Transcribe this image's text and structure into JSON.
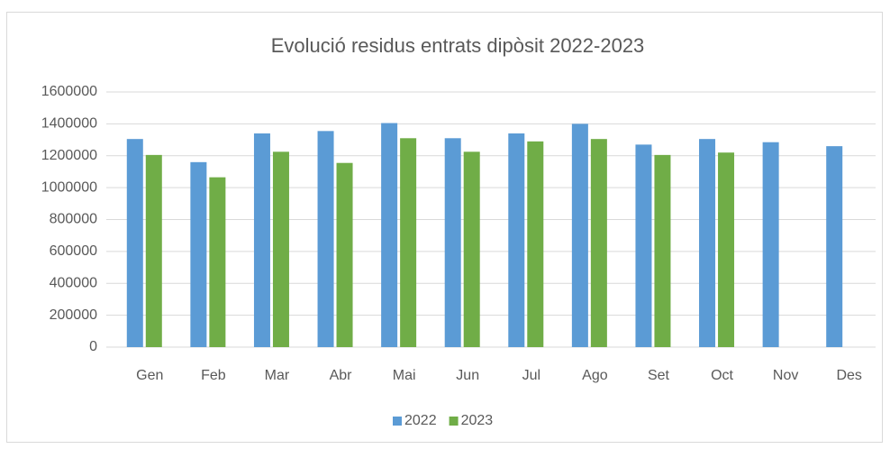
{
  "chart_data": {
    "type": "bar",
    "title": "Evolució residus entrats dipòsit 2022-2023",
    "categories": [
      "Gen",
      "Feb",
      "Mar",
      "Abr",
      "Mai",
      "Jun",
      "Jul",
      "Ago",
      "Set",
      "Oct",
      "Nov",
      "Des"
    ],
    "series": [
      {
        "name": "2022",
        "color": "#5b9bd5",
        "values": [
          1305000,
          1160000,
          1340000,
          1355000,
          1405000,
          1310000,
          1340000,
          1400000,
          1270000,
          1305000,
          1285000,
          1260000
        ]
      },
      {
        "name": "2023",
        "color": "#70ad47",
        "values": [
          1205000,
          1065000,
          1225000,
          1155000,
          1310000,
          1225000,
          1290000,
          1305000,
          1205000,
          1220000,
          null,
          null
        ]
      }
    ],
    "ylim": [
      0,
      1600000
    ],
    "yticks": [
      0,
      200000,
      400000,
      600000,
      800000,
      1000000,
      1200000,
      1400000,
      1600000
    ],
    "grid": true,
    "legend": "bottom"
  }
}
